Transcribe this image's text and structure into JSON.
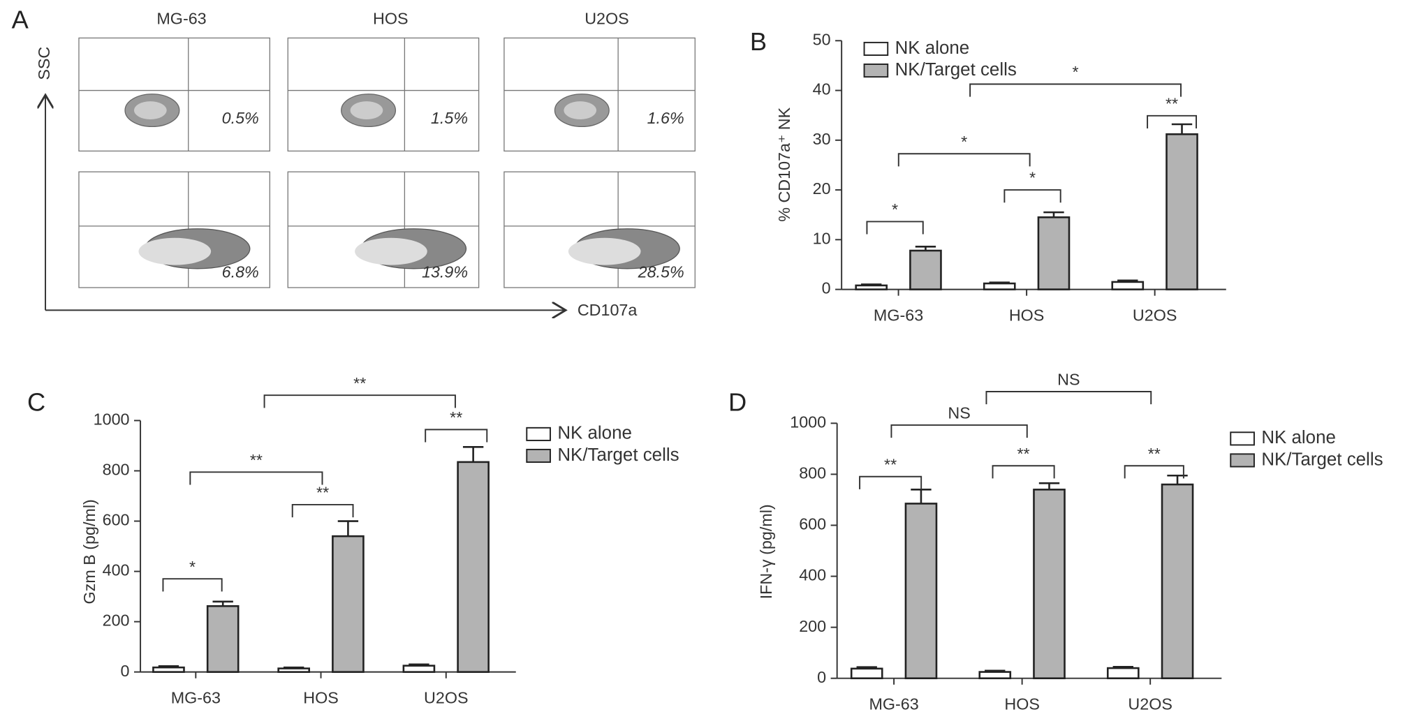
{
  "chart_data": [
    {
      "type": "flow",
      "panel": "A",
      "categories": [
        "MG-63",
        "HOS",
        "U2OS"
      ],
      "y_label": "SSC",
      "x_label": "CD107a",
      "series": [
        {
          "values": [
            0.5,
            1.5,
            1.6
          ],
          "value_labels": [
            "0.5%",
            "1.5%",
            "1.6%"
          ]
        },
        {
          "values": [
            6.8,
            13.9,
            28.5
          ],
          "value_labels": [
            "6.8%",
            "13.9%",
            "28.5%"
          ]
        }
      ]
    },
    {
      "type": "bar",
      "panel": "B",
      "y_label": "% CD107a⁺ NK",
      "categories": [
        "MG-63",
        "HOS",
        "U2OS"
      ],
      "ylim": [
        0,
        50
      ],
      "yticks": [
        0,
        10,
        20,
        30,
        40,
        50
      ],
      "series": [
        {
          "name": "NK alone",
          "color": "#ffffff",
          "values": [
            0.8,
            1.2,
            1.5
          ],
          "errors": [
            0.2,
            0.2,
            0.3
          ]
        },
        {
          "name": "NK/Target cells",
          "color": "#b3b3b3",
          "values": [
            7.8,
            14.5,
            31.2
          ],
          "errors": [
            0.8,
            1.0,
            2.0
          ]
        }
      ],
      "annotations": [
        "*",
        "*",
        "**",
        "*",
        "*"
      ]
    },
    {
      "type": "bar",
      "panel": "C",
      "y_label": "Gzm B (pg/ml)",
      "categories": [
        "MG-63",
        "HOS",
        "U2OS"
      ],
      "ylim": [
        0,
        1000
      ],
      "yticks": [
        0,
        200,
        400,
        600,
        800,
        1000
      ],
      "series": [
        {
          "name": "NK alone",
          "color": "#ffffff",
          "values": [
            18,
            14,
            25
          ],
          "errors": [
            5,
            4,
            5
          ]
        },
        {
          "name": "NK/Target cells",
          "color": "#b3b3b3",
          "values": [
            262,
            540,
            835
          ],
          "errors": [
            18,
            60,
            60
          ]
        }
      ],
      "annotations": [
        "*",
        "**",
        "**",
        "**",
        "**"
      ]
    },
    {
      "type": "bar",
      "panel": "D",
      "y_label": "IFN-γ (pg/ml)",
      "categories": [
        "MG-63",
        "HOS",
        "U2OS"
      ],
      "ylim": [
        0,
        1000
      ],
      "yticks": [
        0,
        200,
        400,
        600,
        800,
        1000
      ],
      "series": [
        {
          "name": "NK alone",
          "color": "#ffffff",
          "values": [
            38,
            25,
            40
          ],
          "errors": [
            6,
            5,
            5
          ]
        },
        {
          "name": "NK/Target cells",
          "color": "#b3b3b3",
          "values": [
            685,
            740,
            760
          ],
          "errors": [
            55,
            25,
            35
          ]
        }
      ],
      "annotations": [
        "**",
        "**",
        "**",
        "NS",
        "NS"
      ]
    }
  ]
}
